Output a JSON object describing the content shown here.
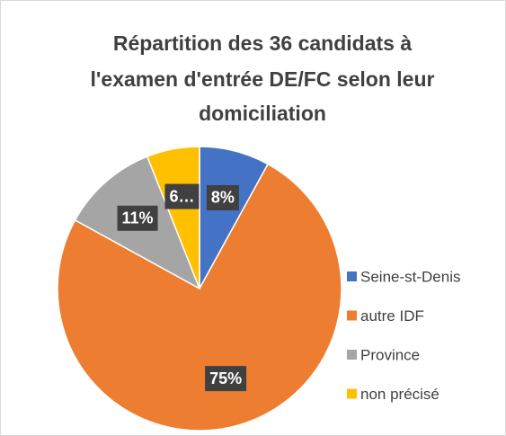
{
  "chart_data": {
    "type": "pie",
    "title": [
      "Répartition des 36 candidats à",
      "l'examen d'entrée DE/FC selon leur",
      "domiciliation"
    ],
    "categories": [
      "Seine-st-Denis",
      "autre IDF",
      "Province",
      "non précisé"
    ],
    "values": [
      8,
      75,
      11,
      6
    ],
    "value_labels": [
      "8%",
      "75%",
      "11%",
      "6…"
    ],
    "colors": [
      "#4472c4",
      "#ed7d31",
      "#a5a5a5",
      "#ffc000"
    ],
    "legend": "right"
  }
}
